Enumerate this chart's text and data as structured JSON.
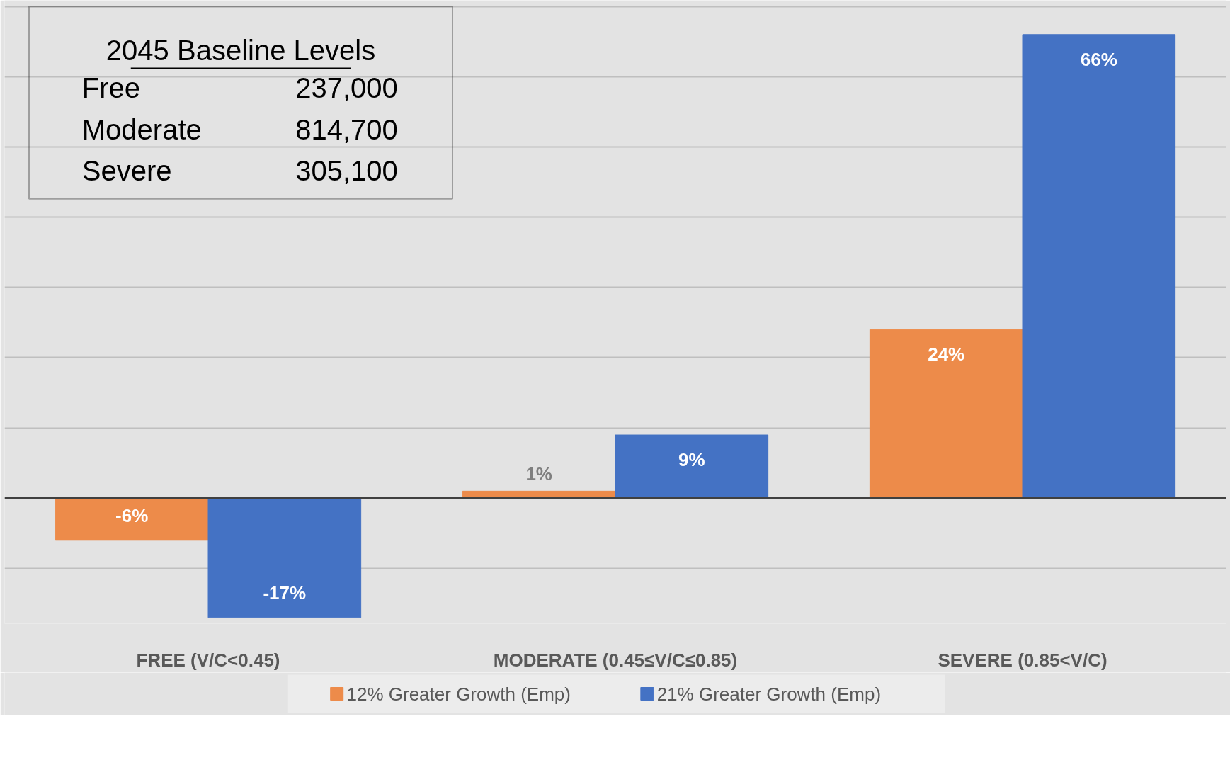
{
  "chart_data": {
    "type": "bar",
    "categories": [
      "FREE (V/C<0.45)",
      "MODERATE (0.45≤V/C≤0.85)",
      "SEVERE (0.85<V/C)"
    ],
    "series": [
      {
        "name": "12% Greater Growth (Emp)",
        "color": "#ed8b4a",
        "values": [
          -6,
          1,
          24
        ],
        "value_labels": [
          "-6%",
          "1%",
          "24%"
        ]
      },
      {
        "name": "21% Greater Growth (Emp)",
        "color": "#4472c4",
        "values": [
          -17,
          9,
          66
        ],
        "value_labels": [
          "-17%",
          "9%",
          "66%"
        ]
      }
    ],
    "tick_labels": "x",
    "grid": "y",
    "legend": "bottom",
    "annotations": [
      "2045 Baseline Levels",
      "Free",
      "237,000",
      "Moderate",
      "814,700",
      "Severe",
      "305,100"
    ]
  }
}
